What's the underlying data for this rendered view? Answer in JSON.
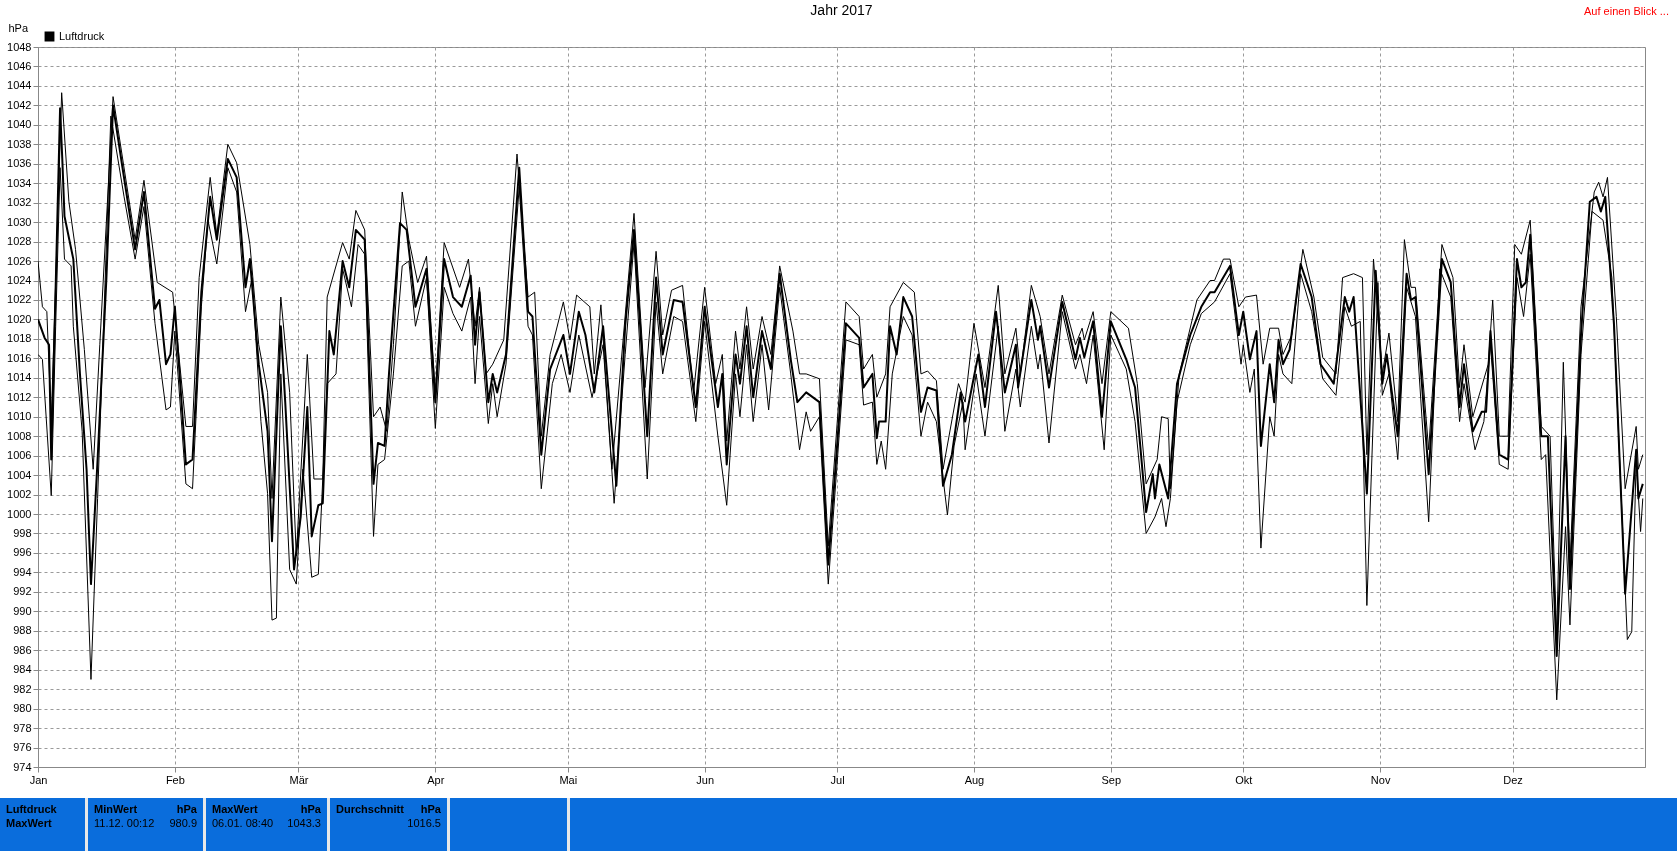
{
  "chart_data": {
    "type": "line",
    "title": "Jahr 2017",
    "ylabel": "hPa",
    "legend": "top left",
    "grid": true,
    "xlim": [
      "2017-01-01",
      "2017-12-31"
    ],
    "xticks": [
      {
        "value": "2017-01-01",
        "label": "Jan"
      },
      {
        "value": "2017-02-01",
        "label": "Feb"
      },
      {
        "value": "2017-03-01",
        "label": "Mär"
      },
      {
        "value": "2017-04-01",
        "label": "Apr"
      },
      {
        "value": "2017-05-01",
        "label": "Mai"
      },
      {
        "value": "2017-06-01",
        "label": "Jun"
      },
      {
        "value": "2017-07-01",
        "label": "Jul"
      },
      {
        "value": "2017-08-01",
        "label": "Aug"
      },
      {
        "value": "2017-09-01",
        "label": "Sep"
      },
      {
        "value": "2017-10-01",
        "label": "Okt"
      },
      {
        "value": "2017-11-01",
        "label": "Nov"
      },
      {
        "value": "2017-12-01",
        "label": "Dez"
      }
    ],
    "ylim": [
      974,
      1048
    ],
    "yticks": [
      974,
      976,
      978,
      980,
      982,
      984,
      986,
      988,
      990,
      992,
      994,
      996,
      998,
      1000,
      1002,
      1004,
      1006,
      1008,
      1010,
      1012,
      1014,
      1016,
      1018,
      1020,
      1022,
      1024,
      1026,
      1028,
      1030,
      1032,
      1034,
      1036,
      1038,
      1040,
      1042,
      1044,
      1046,
      1048
    ],
    "annotations": [
      "Auf einen Blick ...",
      "Luftdruck",
      "MaxWert",
      "MinWert",
      "hPa",
      "11.12. 00:12",
      "980.9",
      "MaxWert",
      "hPa",
      "06.01. 08:40",
      "1043.3",
      "Durchschnitt",
      "hPa",
      "1016.5"
    ],
    "series": [
      {
        "name": "Luftdruck",
        "color": "#000000",
        "x": [
          "2017-01-01",
          "2017-01-02T12:00",
          "2017-01-03T12:00",
          "2017-01-04",
          "2017-01-05",
          "2017-01-06",
          "2017-01-06T12:00",
          "2017-01-07",
          "2017-01-09",
          "2017-01-10T12:00",
          "2017-01-12",
          "2017-01-13",
          "2017-01-14T12:00",
          "2017-01-16T12:00",
          "2017-01-18",
          "2017-01-20",
          "2017-01-23",
          "2017-01-25",
          "2017-01-27T12:00",
          "2017-01-28T12:00",
          "2017-01-30",
          "2017-01-31",
          "2017-02-01",
          "2017-02-03T12:00",
          "2017-02-05",
          "2017-02-07",
          "2017-02-09",
          "2017-02-10T12:00",
          "2017-02-13",
          "2017-02-15",
          "2017-02-17",
          "2017-02-18",
          "2017-02-20",
          "2017-02-22",
          "2017-02-23",
          "2017-02-25",
          "2017-02-26",
          "2017-02-28",
          "2017-03-01T12:00",
          "2017-03-03",
          "2017-03-04",
          "2017-03-05T12:00",
          "2017-03-06T12:00",
          "2017-03-08",
          "2017-03-09",
          "2017-03-11",
          "2017-03-12T12:00",
          "2017-03-14",
          "2017-03-16",
          "2017-03-18",
          "2017-03-19",
          "2017-03-20T12:00",
          "2017-03-21T12:00",
          "2017-03-24",
          "2017-03-25T12:00",
          "2017-03-27T12:00",
          "2017-03-30",
          "2017-04-01",
          "2017-04-03",
          "2017-04-05",
          "2017-04-07",
          "2017-04-09",
          "2017-04-10",
          "2017-04-11",
          "2017-04-13",
          "2017-04-14",
          "2017-04-15",
          "2017-04-17",
          "2017-04-20",
          "2017-04-22",
          "2017-04-23",
          "2017-04-25",
          "2017-04-27",
          "2017-04-30",
          "2017-05-01T12:00",
          "2017-05-03T12:00",
          "2017-05-05",
          "2017-05-07",
          "2017-05-09",
          "2017-05-12",
          "2017-05-14",
          "2017-05-16",
          "2017-05-19",
          "2017-05-21",
          "2017-05-22T12:00",
          "2017-05-25",
          "2017-05-27",
          "2017-05-30",
          "2017-06-01",
          "2017-06-04",
          "2017-06-05",
          "2017-06-06",
          "2017-06-08",
          "2017-06-09",
          "2017-06-10T12:00",
          "2017-06-12",
          "2017-06-14",
          "2017-06-16",
          "2017-06-18",
          "2017-06-20T12:00",
          "2017-06-22",
          "2017-06-24",
          "2017-06-27",
          "2017-06-29",
          "2017-07-01",
          "2017-07-03",
          "2017-07-06",
          "2017-07-07",
          "2017-07-09",
          "2017-07-10",
          "2017-07-10T12:00",
          "2017-07-12",
          "2017-07-13",
          "2017-07-14T12:00",
          "2017-07-16",
          "2017-07-18",
          "2017-07-20",
          "2017-07-21T12:00",
          "2017-07-23T12:00",
          "2017-07-25",
          "2017-07-27",
          "2017-07-29",
          "2017-07-30",
          "2017-08-02",
          "2017-08-03T12:00",
          "2017-08-06",
          "2017-08-08",
          "2017-08-10T12:00",
          "2017-08-11",
          "2017-08-14",
          "2017-08-15T12:00",
          "2017-08-16",
          "2017-08-18",
          "2017-08-21",
          "2017-08-24",
          "2017-08-25",
          "2017-08-26",
          "2017-08-28",
          "2017-08-30",
          "2017-09-01",
          "2017-09-04T12:00",
          "2017-09-06T12:00",
          "2017-09-09",
          "2017-09-10T12:00",
          "2017-09-11",
          "2017-09-12",
          "2017-09-14",
          "2017-09-16",
          "2017-09-19",
          "2017-09-21T12:00",
          "2017-09-23T12:00",
          "2017-09-24T12:00",
          "2017-09-28",
          "2017-09-30",
          "2017-10-01",
          "2017-10-02T12:00",
          "2017-10-04",
          "2017-10-05",
          "2017-10-07",
          "2017-10-08",
          "2017-10-09",
          "2017-10-10",
          "2017-10-11T12:00",
          "2017-10-14",
          "2017-10-16T12:00",
          "2017-10-18T12:00",
          "2017-10-21T12:00",
          "2017-10-24",
          "2017-10-25",
          "2017-10-26",
          "2017-10-29",
          "2017-10-31",
          "2017-11-01T12:00",
          "2017-11-02T12:00",
          "2017-11-05",
          "2017-11-07",
          "2017-11-08",
          "2017-11-09",
          "2017-11-12",
          "2017-11-15",
          "2017-11-17",
          "2017-11-19",
          "2017-11-20",
          "2017-11-22",
          "2017-11-24",
          "2017-11-25",
          "2017-11-26",
          "2017-11-28",
          "2017-11-30",
          "2017-12-02",
          "2017-12-03",
          "2017-12-04",
          "2017-12-05",
          "2017-12-07T12:00",
          "2017-12-09",
          "2017-12-11",
          "2017-12-13",
          "2017-12-14",
          "2017-12-16T12:00",
          "2017-12-18T12:00",
          "2017-12-20",
          "2017-12-21",
          "2017-12-22",
          "2017-12-24",
          "2017-12-26T12:00",
          "2017-12-29",
          "2017-12-29T12:00",
          "2017-12-30T12:00"
        ],
        "values": [
          1020,
          1018.1,
          1017.4,
          1005.6,
          1023.3,
          1041.7,
          1036.5,
          1030.6,
          1026.2,
          1014.4,
          1004.6,
          992.8,
          1005.6,
          1024.3,
          1042,
          1036,
          1027.2,
          1033.1,
          1021.1,
          1022,
          1015.4,
          1016.4,
          1021.3,
          1005.1,
          1005.6,
          1022.8,
          1032.6,
          1028.2,
          1036.5,
          1034.6,
          1023.3,
          1026.2,
          1015.4,
          1008.5,
          997.2,
          1019.3,
          1011.5,
          994.3,
          999.7,
          1011,
          997.7,
          1000.9,
          1001.1,
          1018.8,
          1016.4,
          1026,
          1023.3,
          1029.2,
          1028.2,
          1003.1,
          1007.3,
          1007,
          1014.4,
          1029.9,
          1029.2,
          1021.3,
          1025.2,
          1011.5,
          1026.2,
          1022.3,
          1021.3,
          1024.5,
          1017.4,
          1022.8,
          1011.5,
          1014.4,
          1012.5,
          1016.4,
          1035.6,
          1020.8,
          1020.3,
          1006.1,
          1014.9,
          1018.4,
          1014.4,
          1020.8,
          1018.4,
          1012.5,
          1019.3,
          1002.9,
          1019.3,
          1029.2,
          1008,
          1024.3,
          1016.4,
          1022,
          1021.8,
          1011,
          1021.3,
          1011,
          1014.4,
          1005.1,
          1016.4,
          1013.4,
          1019.3,
          1012,
          1018.8,
          1014.9,
          1024.7,
          1015.9,
          1011.5,
          1012.5,
          1011.5,
          994.8,
          1007,
          1019.6,
          1018.1,
          1013,
          1014.4,
          1007.8,
          1009.5,
          1009.5,
          1019.3,
          1016.4,
          1022.3,
          1020.3,
          1010.5,
          1013,
          1012.7,
          1002.9,
          1006.1,
          1012.5,
          1009.5,
          1016.4,
          1011,
          1020.8,
          1012.5,
          1017.4,
          1013,
          1022,
          1017.9,
          1019.3,
          1013,
          1021.8,
          1015.9,
          1018.1,
          1016.1,
          1019.8,
          1010,
          1019.8,
          1015.9,
          1013,
          1000.2,
          1004.1,
          1001.6,
          1005.1,
          1001.6,
          1013.4,
          1018.4,
          1021.3,
          1022.8,
          1022.8,
          1025.5,
          1018.4,
          1020.8,
          1015.9,
          1018.8,
          1007,
          1015.4,
          1011.5,
          1017.9,
          1015.4,
          1016.9,
          1025.7,
          1022.3,
          1015.4,
          1013.4,
          1022.3,
          1020.8,
          1022.3,
          1002.1,
          1025,
          1013.4,
          1016.4,
          1008,
          1024.7,
          1022,
          1022.3,
          1004.1,
          1026.2,
          1023.8,
          1011,
          1015.4,
          1008.5,
          1010.5,
          1010.5,
          1018.8,
          1006.1,
          1005.6,
          1026.2,
          1023.3,
          1023.8,
          1028.7,
          1008,
          1008,
          985.4,
          1008,
          992.3,
          1018.4,
          1032.1,
          1032.6,
          1031.1,
          1032.6,
          1019.3,
          991.8,
          1006.6,
          1001.6,
          1003.1
        ]
      },
      {
        "color": "#000000",
        "x": [
          "2017-01-01",
          "2017-01-02",
          "2017-01-03",
          "2017-01-04",
          "2017-01-06T08:40",
          "2017-01-08",
          "2017-01-09T12:00",
          "2017-01-11T12:00",
          "2017-01-13T12:00",
          "2017-01-15",
          "2017-01-18",
          "2017-01-23",
          "2017-01-25",
          "2017-01-28",
          "2017-01-31T12:00",
          "2017-02-03T12:00",
          "2017-02-05",
          "2017-02-06T12:00",
          "2017-02-09",
          "2017-02-10T12:00",
          "2017-02-13",
          "2017-02-15",
          "2017-02-18",
          "2017-02-20",
          "2017-02-22",
          "2017-02-23",
          "2017-02-25",
          "2017-02-27",
          "2017-02-28T12:00",
          "2017-03-03",
          "2017-03-04T12:00",
          "2017-03-06T12:00",
          "2017-03-07T12:00",
          "2017-03-11",
          "2017-03-12T12:00",
          "2017-03-14",
          "2017-03-16",
          "2017-03-18",
          "2017-03-19T12:00",
          "2017-03-21",
          "2017-03-22T12:00",
          "2017-03-24T12:00",
          "2017-03-26",
          "2017-03-28",
          "2017-03-30",
          "2017-04-01",
          "2017-04-03",
          "2017-04-06T12:00",
          "2017-04-08T12:00",
          "2017-04-10",
          "2017-04-11",
          "2017-04-12T12:00",
          "2017-04-14",
          "2017-04-16T12:00",
          "2017-04-19T12:00",
          "2017-04-22",
          "2017-04-23T12:00",
          "2017-04-25",
          "2017-04-27",
          "2017-04-30",
          "2017-05-01T12:00",
          "2017-05-03",
          "2017-05-06",
          "2017-05-07",
          "2017-05-08T12:00",
          "2017-05-11",
          "2017-05-16",
          "2017-05-18T12:00",
          "2017-05-21",
          "2017-05-22T12:00",
          "2017-05-24T12:00",
          "2017-05-27",
          "2017-05-29T12:00",
          "2017-06-01",
          "2017-06-03T12:00",
          "2017-06-05",
          "2017-06-06",
          "2017-06-08",
          "2017-06-09",
          "2017-06-10T12:00",
          "2017-06-12",
          "2017-06-14",
          "2017-06-16",
          "2017-06-18",
          "2017-06-21",
          "2017-06-22T12:00",
          "2017-06-24",
          "2017-06-27",
          "2017-06-29",
          "2017-07-03",
          "2017-07-06",
          "2017-07-07",
          "2017-07-09",
          "2017-07-10",
          "2017-07-12",
          "2017-07-13",
          "2017-07-16",
          "2017-07-18T12:00",
          "2017-07-20",
          "2017-07-21T12:00",
          "2017-07-23T12:00",
          "2017-07-25",
          "2017-07-28T12:00",
          "2017-07-30",
          "2017-08-01",
          "2017-08-03T12:00",
          "2017-08-06T12:00",
          "2017-08-08",
          "2017-08-10T12:00",
          "2017-08-11T12:00",
          "2017-08-14",
          "2017-08-16",
          "2017-08-18",
          "2017-08-21",
          "2017-08-24",
          "2017-08-25T12:00",
          "2017-08-26",
          "2017-08-28",
          "2017-08-30",
          "2017-09-01",
          "2017-09-05",
          "2017-09-07",
          "2017-09-09",
          "2017-09-11T12:00",
          "2017-09-12T12:00",
          "2017-09-14",
          "2017-09-14T12:00",
          "2017-09-16T12:00",
          "2017-09-20T12:00",
          "2017-09-23T12:00",
          "2017-09-24T12:00",
          "2017-09-26T12:00",
          "2017-09-28",
          "2017-09-30",
          "2017-10-01T12:00",
          "2017-10-04",
          "2017-10-05T12:00",
          "2017-10-07",
          "2017-10-09",
          "2017-10-10",
          "2017-10-12",
          "2017-10-14T12:00",
          "2017-10-17",
          "2017-10-19",
          "2017-10-22",
          "2017-10-23T12:00",
          "2017-10-26",
          "2017-10-28",
          "2017-10-29",
          "2017-10-30T12:00",
          "2017-11-01T12:00",
          "2017-11-03",
          "2017-11-05",
          "2017-11-06T12:00",
          "2017-11-08",
          "2017-11-09",
          "2017-11-12",
          "2017-11-15",
          "2017-11-17T12:00",
          "2017-11-19",
          "2017-11-20",
          "2017-11-22",
          "2017-11-25T12:00",
          "2017-11-26T12:00",
          "2017-11-28",
          "2017-11-30",
          "2017-12-01T12:00",
          "2017-12-03",
          "2017-12-05",
          "2017-12-07T12:00",
          "2017-12-09T12:00",
          "2017-12-11",
          "2017-12-12T12:00",
          "2017-12-14",
          "2017-12-16T12:00",
          "2017-12-19T12:00",
          "2017-12-20T12:00",
          "2017-12-21T12:00",
          "2017-12-22T12:00",
          "2017-12-24T12:00",
          "2017-12-26T12:00",
          "2017-12-29",
          "2017-12-29T12:00",
          "2017-12-30T12:00"
        ],
        "values": [
          1026,
          1021.3,
          1020.8,
          1009.5,
          1043.3,
          1032.1,
          1027.2,
          1016.9,
          1004.6,
          1017.4,
          1042.9,
          1028.2,
          1034.3,
          1023.8,
          1022.8,
          1009,
          1009,
          1024.3,
          1034.6,
          1028.7,
          1038,
          1036.1,
          1027.7,
          1017.4,
          1012.5,
          1001.6,
          1022.3,
          1012.5,
          995.7,
          1016.4,
          1003.6,
          1003.6,
          1022.3,
          1027.9,
          1026.2,
          1031.2,
          1029.2,
          1010,
          1011,
          1008.5,
          1017.4,
          1033.1,
          1028.2,
          1023.8,
          1026.5,
          1012.5,
          1027.9,
          1023.3,
          1026.2,
          1019.3,
          1023.3,
          1014.4,
          1015.4,
          1017.9,
          1037,
          1022.3,
          1022.8,
          1008,
          1016.4,
          1021.8,
          1017.9,
          1022.5,
          1021.3,
          1014.4,
          1021.5,
          1004.6,
          1030.9,
          1013,
          1027,
          1018.4,
          1023,
          1023.5,
          1012.5,
          1023.3,
          1013.4,
          1016.4,
          1007.5,
          1018.8,
          1014.9,
          1021.3,
          1014.9,
          1020.3,
          1016.4,
          1025.5,
          1018.8,
          1014.4,
          1014.4,
          1013.9,
          996.7,
          1021.8,
          1020.3,
          1014.9,
          1016.4,
          1012,
          1014.4,
          1021.3,
          1023.8,
          1022.8,
          1014.4,
          1014.7,
          1013.7,
          1004.6,
          1013.4,
          1011.5,
          1019.6,
          1013,
          1023.5,
          1014.4,
          1019.1,
          1014.4,
          1023.5,
          1020.3,
          1014.4,
          1022.5,
          1017.4,
          1019.1,
          1017.9,
          1020.8,
          1013.4,
          1020.8,
          1019.1,
          1013.4,
          1003.1,
          1005.6,
          1010,
          1009.8,
          1002.6,
          1014.4,
          1022,
          1024,
          1024,
          1026.2,
          1026.2,
          1021.3,
          1022.3,
          1022.5,
          1015.4,
          1019.1,
          1019.1,
          1016.4,
          1018.4,
          1027.2,
          1022.3,
          1016.1,
          1014.4,
          1024.3,
          1024.7,
          1024.3,
          1006.1,
          1026.2,
          1014.4,
          1018.6,
          1009.5,
          1028.2,
          1023.3,
          1023.3,
          1006.6,
          1027.7,
          1024.3,
          1013,
          1017.4,
          1010,
          1015.4,
          1022,
          1008,
          1008,
          1027.7,
          1026.7,
          1030.2,
          1009,
          1008,
          987.4,
          1015.6,
          994.8,
          1021.3,
          1033.1,
          1034.1,
          1032.6,
          1034.6,
          1020.3,
          1002.6,
          1009,
          1004.6,
          1006.1
        ]
      },
      {
        "color": "#000000",
        "x": [
          "2017-01-01",
          "2017-01-02",
          "2017-01-04",
          "2017-01-05",
          "2017-01-06",
          "2017-01-07",
          "2017-01-08T12:00",
          "2017-01-09",
          "2017-01-11",
          "2017-01-13",
          "2017-01-14T12:00",
          "2017-01-17T12:00",
          "2017-01-20T12:00",
          "2017-01-23",
          "2017-01-25",
          "2017-01-27T12:00",
          "2017-01-30",
          "2017-01-31",
          "2017-02-01",
          "2017-02-03T12:00",
          "2017-02-05",
          "2017-02-07",
          "2017-02-08T12:00",
          "2017-02-10T12:00",
          "2017-02-13",
          "2017-02-15",
          "2017-02-17",
          "2017-02-18T12:00",
          "2017-02-20T12:00",
          "2017-02-22",
          "2017-02-23",
          "2017-02-24",
          "2017-02-25",
          "2017-02-27",
          "2017-02-28T12:00",
          "2017-03-02",
          "2017-03-04",
          "2017-03-05T12:00",
          "2017-03-07T12:00",
          "2017-03-09T12:00",
          "2017-03-11",
          "2017-03-13",
          "2017-03-14T12:00",
          "2017-03-16",
          "2017-03-18",
          "2017-03-19",
          "2017-03-20T12:00",
          "2017-03-22T12:00",
          "2017-03-24T12:00",
          "2017-03-26",
          "2017-03-27T12:00",
          "2017-03-30",
          "2017-04-01",
          "2017-04-03",
          "2017-04-05",
          "2017-04-07",
          "2017-04-09",
          "2017-04-10",
          "2017-04-11",
          "2017-04-13",
          "2017-04-14",
          "2017-04-15",
          "2017-04-17",
          "2017-04-20",
          "2017-04-22",
          "2017-04-23",
          "2017-04-25",
          "2017-04-27T12:00",
          "2017-04-29T12:00",
          "2017-05-01T12:00",
          "2017-05-03T12:00",
          "2017-05-06T12:00",
          "2017-05-09",
          "2017-05-11T12:00",
          "2017-05-14",
          "2017-05-16",
          "2017-05-19",
          "2017-05-21",
          "2017-05-22T12:00",
          "2017-05-25",
          "2017-05-27",
          "2017-05-30",
          "2017-06-01",
          "2017-06-04",
          "2017-06-06",
          "2017-06-08",
          "2017-06-09",
          "2017-06-10T12:00",
          "2017-06-12",
          "2017-06-14",
          "2017-06-15T12:00",
          "2017-06-18",
          "2017-06-20T12:00",
          "2017-06-22T12:00",
          "2017-06-24",
          "2017-06-25",
          "2017-06-27",
          "2017-06-29",
          "2017-07-01",
          "2017-07-03",
          "2017-07-06",
          "2017-07-07",
          "2017-07-09",
          "2017-07-10",
          "2017-07-11",
          "2017-07-12",
          "2017-07-13T12:00",
          "2017-07-16",
          "2017-07-18",
          "2017-07-20",
          "2017-07-21T12:00",
          "2017-07-23T12:00",
          "2017-07-26",
          "2017-07-27T12:00",
          "2017-07-29T12:00",
          "2017-07-30",
          "2017-08-01T12:00",
          "2017-08-03T12:00",
          "2017-08-06T12:00",
          "2017-08-08",
          "2017-08-10T12:00",
          "2017-08-11T12:00",
          "2017-08-14",
          "2017-08-15T12:00",
          "2017-08-16",
          "2017-08-18",
          "2017-08-21",
          "2017-08-24",
          "2017-08-25",
          "2017-08-26T12:00",
          "2017-08-28",
          "2017-08-30T12:00",
          "2017-09-01",
          "2017-09-04T12:00",
          "2017-09-06T12:00",
          "2017-09-09",
          "2017-09-11",
          "2017-09-12T12:00",
          "2017-09-13T12:00",
          "2017-09-14T12:00",
          "2017-09-16",
          "2017-09-19",
          "2017-09-21T12:00",
          "2017-09-24T12:00",
          "2017-09-28",
          "2017-09-30T12:00",
          "2017-10-01",
          "2017-10-02T12:00",
          "2017-10-03T12:00",
          "2017-10-05",
          "2017-10-07",
          "2017-10-08",
          "2017-10-09",
          "2017-10-10",
          "2017-10-12",
          "2017-10-14",
          "2017-10-16T12:00",
          "2017-10-19",
          "2017-10-22",
          "2017-10-24",
          "2017-10-25T12:00",
          "2017-10-27T12:00",
          "2017-10-29",
          "2017-10-31T12:00",
          "2017-11-01T12:00",
          "2017-11-03",
          "2017-11-05",
          "2017-11-07",
          "2017-11-09",
          "2017-11-12",
          "2017-11-14T12:00",
          "2017-11-17",
          "2017-11-19",
          "2017-11-20",
          "2017-11-22T12:00",
          "2017-11-24T12:00",
          "2017-11-26",
          "2017-11-28",
          "2017-11-30",
          "2017-12-02",
          "2017-12-03T12:00",
          "2017-12-05",
          "2017-12-07T12:00",
          "2017-12-08T12:00",
          "2017-12-11T00:12",
          "2017-12-13",
          "2017-12-14",
          "2017-12-16T12:00",
          "2017-12-19",
          "2017-12-21T12:00",
          "2017-12-23T12:00",
          "2017-12-27",
          "2017-12-28",
          "2017-12-29",
          "2017-12-30",
          "2017-12-30T12:00"
        ],
        "values": [
          1016.4,
          1015.9,
          1001.9,
          1019.3,
          1035.6,
          1026.2,
          1025.5,
          1019.3,
          1008.5,
          983,
          1001.6,
          1040.9,
          1032.6,
          1026.2,
          1031.6,
          1019.6,
          1010.7,
          1011,
          1018.8,
          1003.1,
          1002.6,
          1021.3,
          1030.2,
          1025.7,
          1035.6,
          1033.1,
          1020.8,
          1024.3,
          1009.5,
          1002.1,
          989.1,
          989.3,
          1014.4,
          994.3,
          992.8,
          1004.6,
          993.5,
          993.8,
          1013.4,
          1014.4,
          1025.2,
          1021.3,
          1027.7,
          1026.7,
          997.7,
          1005.1,
          1005.6,
          1014.4,
          1025.5,
          1026,
          1019.3,
          1024.3,
          1008.8,
          1023.3,
          1020.6,
          1018.8,
          1022.3,
          1013.4,
          1020.3,
          1009.3,
          1013.4,
          1010,
          1015.4,
          1033.6,
          1019.3,
          1018.4,
          1002.6,
          1013.4,
          1016.4,
          1012.5,
          1018.4,
          1012,
          1017.4,
          1001.1,
          1016.4,
          1027.9,
          1003.6,
          1021.8,
          1014.4,
          1020.3,
          1019.8,
          1009.5,
          1019.8,
          1008,
          1000.9,
          1014.4,
          1010,
          1017.4,
          1009.5,
          1017.4,
          1010.7,
          1023.3,
          1014.4,
          1006.6,
          1010.5,
          1008.5,
          1010,
          992.8,
          1005.1,
          1017.9,
          1017.4,
          1011.2,
          1011.5,
          1005.1,
          1007.5,
          1004.6,
          1014.4,
          1020.3,
          1018.4,
          1008,
          1011.5,
          1009.5,
          999.9,
          1007,
          1011.5,
          1006.6,
          1014.4,
          1008,
          1019.3,
          1008.5,
          1014.9,
          1011,
          1019.3,
          1014.9,
          1016.4,
          1007.3,
          1020.8,
          1014.9,
          1016.4,
          1013.4,
          1018.4,
          1006.6,
          1018.4,
          1014.9,
          1009.5,
          998,
          999.7,
          1001.6,
          998.7,
          1001.6,
          1011.5,
          1017.4,
          1020.6,
          1021.8,
          1024.7,
          1015.4,
          1017.4,
          1012.5,
          1014.9,
          996.5,
          1010,
          1008,
          1016.4,
          1014.4,
          1013.4,
          1024.7,
          1020.8,
          1013.9,
          1012.2,
          1021.3,
          1019.3,
          1019.8,
          990.6,
          1023.8,
          1012.2,
          1014.4,
          1005.6,
          1023.3,
          1020.3,
          999.2,
          1025.2,
          1022.3,
          1009.5,
          1013.4,
          1006.6,
          1009.5,
          1017.4,
          1005.1,
          1004.6,
          1024.3,
          1020.3,
          1026.7,
          1005.6,
          1006.1,
          980.9,
          998.7,
          988.6,
          1016.4,
          1031.1,
          1030.2,
          1024.3,
          987.1,
          987.9,
          1005.6,
          998.2,
          1001.6
        ]
      }
    ]
  }
}
